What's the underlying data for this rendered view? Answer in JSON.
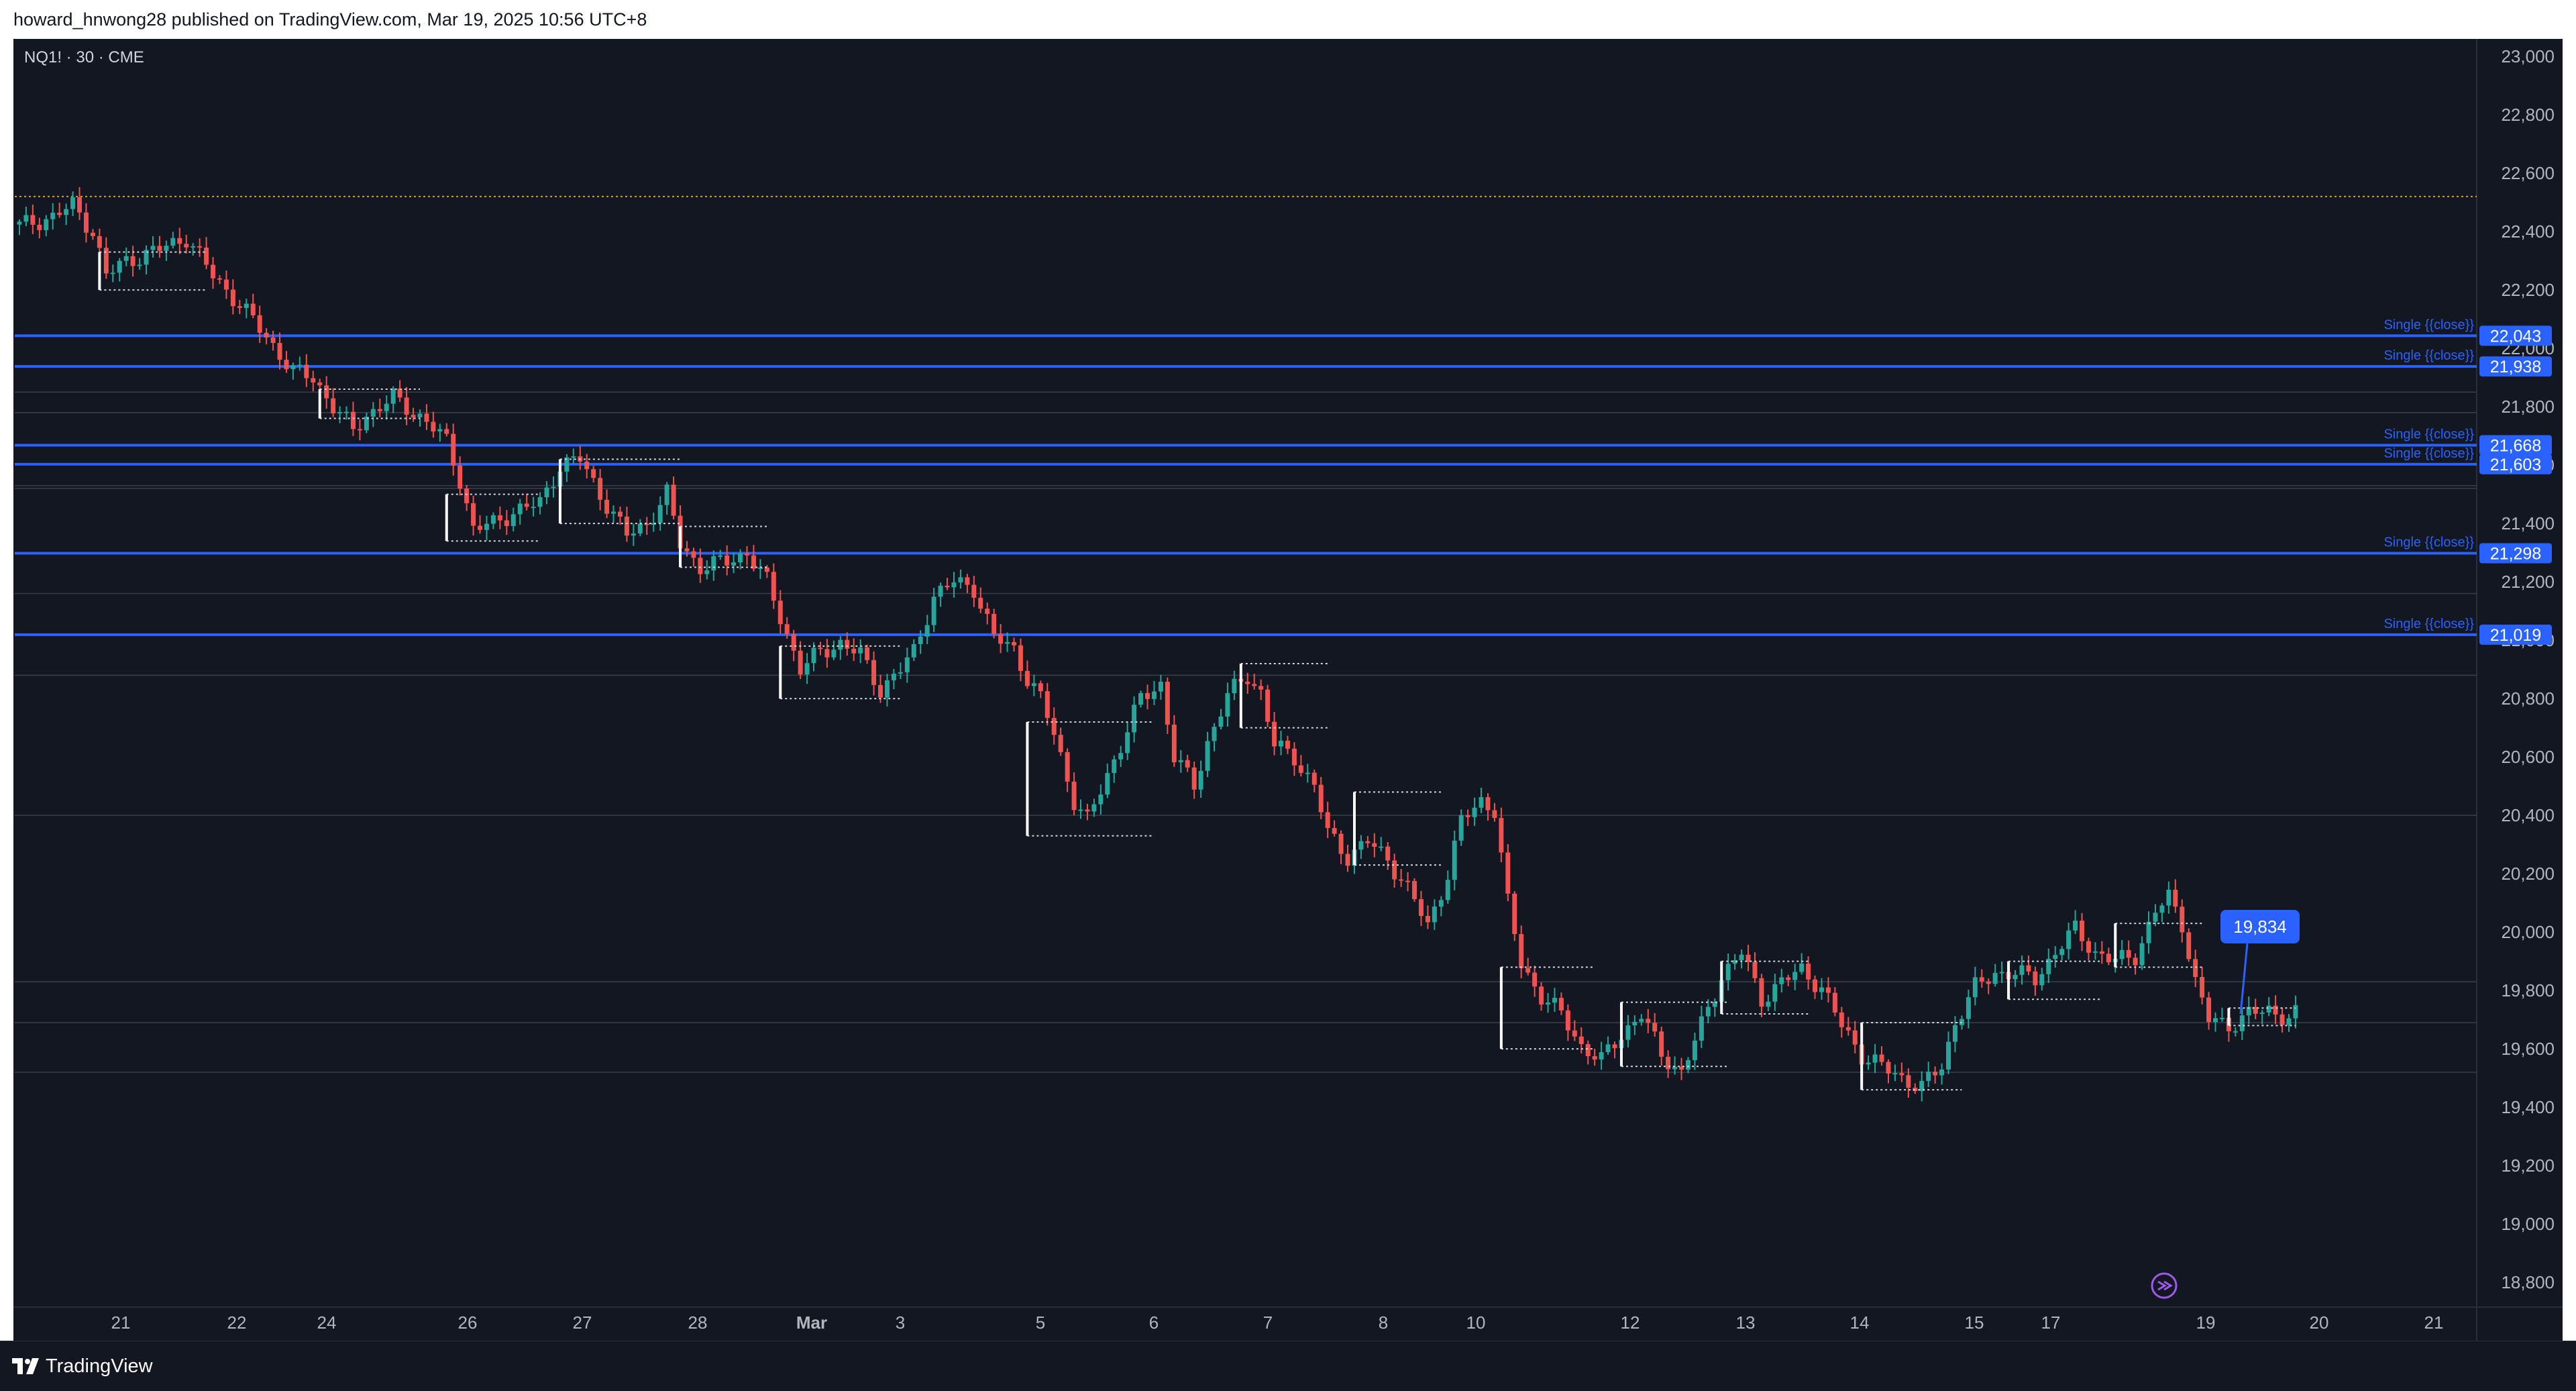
{
  "header": {
    "published_line": "howard_hnwong28 published on TradingView.com, Mar 19, 2025 10:56 UTC+8"
  },
  "symbol": {
    "label": "NQ1! · 30 · CME"
  },
  "footer": {
    "brand": "TradingView"
  },
  "colors": {
    "background": "#131722",
    "up": "#26a69a",
    "down": "#ef5350",
    "level_line": "#2962ff",
    "axis_text": "#b2b5be",
    "dotted_top": "#c9a227"
  },
  "chart_data": {
    "type": "candlestick",
    "y_axis": {
      "ticks": [
        18800,
        19000,
        19200,
        19400,
        19600,
        19800,
        20000,
        20200,
        20400,
        20600,
        20800,
        21000,
        21200,
        21400,
        21600,
        21800,
        22000,
        22200,
        22400,
        22600,
        22800,
        23000
      ],
      "tick_labels": [
        "18,800",
        "19,000",
        "19,200",
        "19,400",
        "19,600",
        "19,800",
        "20,000",
        "20,200",
        "20,400",
        "20,600",
        "20,800",
        "21,000",
        "21,200",
        "21,400",
        "21,600",
        "21,800",
        "22,000",
        "22,200",
        "22,400",
        "22,600",
        "22,800",
        "23,000"
      ],
      "range": [
        18720,
        23060
      ]
    },
    "x_axis": {
      "tick_labels": [
        "21",
        "22",
        "24",
        "26",
        "27",
        "28",
        "Mar",
        "3",
        "5",
        "6",
        "7",
        "8",
        "10",
        "12",
        "13",
        "14",
        "15",
        "17",
        "19",
        "20",
        "21"
      ]
    },
    "horizontal_levels": [
      {
        "price": 22043,
        "label": "22,043",
        "annotation": "Single {{close}}"
      },
      {
        "price": 21938,
        "label": "21,938",
        "annotation": "Single {{close}}"
      },
      {
        "price": 21668,
        "label": "21,668",
        "annotation": "Single {{close}}"
      },
      {
        "price": 21603,
        "label": "21,603",
        "annotation": "Single {{close}}"
      },
      {
        "price": 21298,
        "label": "21,298",
        "annotation": "Single {{close}}"
      },
      {
        "price": 21019,
        "label": "21,019",
        "annotation": "Single {{close}}"
      }
    ],
    "dotted_top_level": 22520,
    "callout": {
      "label": "19,834",
      "price": 19834
    },
    "path_prices": [
      [
        0,
        22420
      ],
      [
        5,
        22450
      ],
      [
        8,
        22490
      ],
      [
        11,
        22400
      ],
      [
        13,
        22250
      ],
      [
        16,
        22300
      ],
      [
        20,
        22330
      ],
      [
        25,
        22380
      ],
      [
        29,
        22250
      ],
      [
        33,
        22150
      ],
      [
        37,
        22040
      ],
      [
        41,
        21920
      ],
      [
        44,
        21900
      ],
      [
        47,
        21800
      ],
      [
        50,
        21720
      ],
      [
        52,
        21770
      ],
      [
        56,
        21830
      ],
      [
        61,
        21750
      ],
      [
        64,
        21680
      ],
      [
        66,
        21550
      ],
      [
        68,
        21380
      ],
      [
        71,
        21400
      ],
      [
        74,
        21440
      ],
      [
        78,
        21470
      ],
      [
        81,
        21600
      ],
      [
        84,
        21620
      ],
      [
        87,
        21500
      ],
      [
        91,
        21360
      ],
      [
        94,
        21400
      ],
      [
        97,
        21500
      ],
      [
        99,
        21330
      ],
      [
        102,
        21250
      ],
      [
        106,
        21270
      ],
      [
        109,
        21300
      ],
      [
        112,
        21200
      ],
      [
        114,
        21080
      ],
      [
        117,
        20900
      ],
      [
        120,
        20960
      ],
      [
        123,
        20990
      ],
      [
        126,
        20950
      ],
      [
        129,
        20830
      ],
      [
        132,
        20900
      ],
      [
        134,
        20960
      ],
      [
        137,
        21150
      ],
      [
        140,
        21200
      ],
      [
        143,
        21180
      ],
      [
        146,
        21010
      ],
      [
        149,
        20970
      ],
      [
        151,
        20870
      ],
      [
        153,
        20800
      ],
      [
        155,
        20680
      ],
      [
        158,
        20450
      ],
      [
        160,
        20380
      ],
      [
        163,
        20540
      ],
      [
        165,
        20640
      ],
      [
        168,
        20800
      ],
      [
        171,
        20850
      ],
      [
        173,
        20600
      ],
      [
        176,
        20500
      ],
      [
        178,
        20650
      ],
      [
        181,
        20810
      ],
      [
        184,
        20880
      ],
      [
        186,
        20820
      ],
      [
        188,
        20640
      ],
      [
        191,
        20600
      ],
      [
        194,
        20500
      ],
      [
        196,
        20340
      ],
      [
        199,
        20260
      ],
      [
        202,
        20310
      ],
      [
        205,
        20250
      ],
      [
        208,
        20150
      ],
      [
        211,
        20020
      ],
      [
        214,
        20200
      ],
      [
        216,
        20380
      ],
      [
        219,
        20450
      ],
      [
        221,
        20420
      ],
      [
        223,
        20100
      ],
      [
        225,
        19890
      ],
      [
        228,
        19780
      ],
      [
        231,
        19720
      ],
      [
        234,
        19610
      ],
      [
        237,
        19560
      ],
      [
        240,
        19650
      ],
      [
        243,
        19720
      ],
      [
        246,
        19580
      ],
      [
        249,
        19520
      ],
      [
        252,
        19680
      ],
      [
        255,
        19850
      ],
      [
        258,
        19930
      ],
      [
        261,
        19770
      ],
      [
        264,
        19830
      ],
      [
        267,
        19870
      ],
      [
        270,
        19810
      ],
      [
        273,
        19680
      ],
      [
        276,
        19580
      ],
      [
        279,
        19540
      ],
      [
        282,
        19500
      ],
      [
        285,
        19470
      ],
      [
        288,
        19540
      ],
      [
        290,
        19690
      ],
      [
        293,
        19810
      ],
      [
        296,
        19860
      ],
      [
        299,
        19860
      ],
      [
        302,
        19840
      ],
      [
        305,
        19930
      ],
      [
        308,
        20010
      ],
      [
        311,
        19930
      ],
      [
        314,
        19900
      ],
      [
        317,
        19920
      ],
      [
        320,
        20070
      ],
      [
        322,
        20120
      ],
      [
        324,
        20030
      ],
      [
        326,
        19830
      ],
      [
        328,
        19700
      ],
      [
        331,
        19680
      ],
      [
        334,
        19720
      ],
      [
        337,
        19730
      ],
      [
        340,
        19710
      ],
      [
        341,
        19720
      ]
    ]
  }
}
